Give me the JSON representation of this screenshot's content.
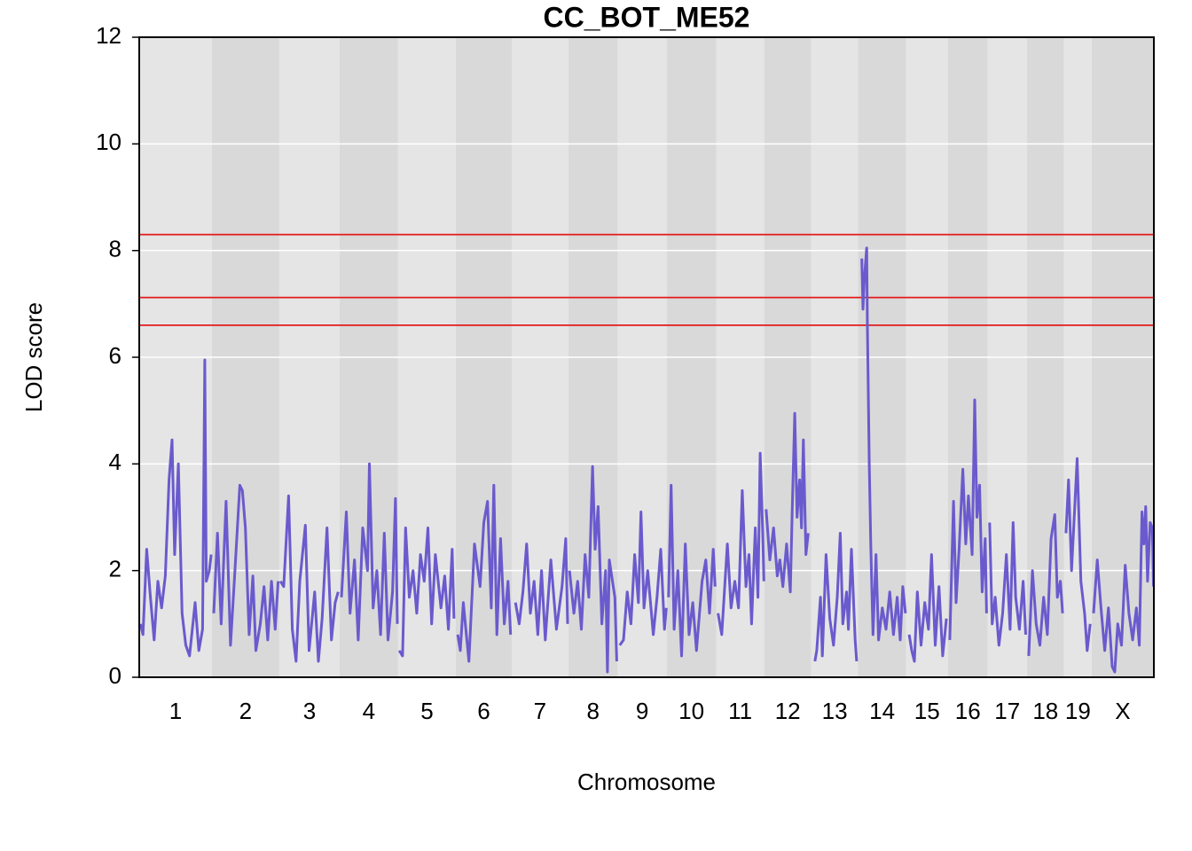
{
  "chart_data": {
    "type": "line",
    "title": "CC_BOT_ME52",
    "xlabel": "Chromosome",
    "ylabel": "LOD score",
    "ylim": [
      0,
      12
    ],
    "yticks": [
      0,
      2,
      4,
      6,
      8,
      10,
      12
    ],
    "grid": true,
    "color": "#6a5acd",
    "thresholds": [
      8.3,
      7.12,
      6.6
    ],
    "threshold_color": "#e31a1c",
    "band_colors": [
      "#e5e5e5",
      "#d9d9d9"
    ],
    "chromosomes": [
      {
        "name": "1",
        "length": 195,
        "x": [
          3,
          10,
          20,
          30,
          40,
          50,
          60,
          70,
          80,
          88,
          95,
          105,
          115,
          125,
          135,
          150,
          160,
          170,
          176,
          180,
          188,
          193
        ],
        "values": [
          1.0,
          0.8,
          2.4,
          1.5,
          0.7,
          1.8,
          1.3,
          1.9,
          3.7,
          4.45,
          2.3,
          4.0,
          1.2,
          0.6,
          0.4,
          1.4,
          0.5,
          0.9,
          5.95,
          1.8,
          2.0,
          2.3
        ]
      },
      {
        "name": "2",
        "length": 181,
        "x": [
          5,
          15,
          25,
          38,
          50,
          62,
          75,
          82,
          90,
          100,
          110,
          118,
          130,
          140,
          150,
          160,
          170,
          178
        ],
        "values": [
          1.2,
          2.7,
          1.0,
          3.3,
          0.6,
          2.0,
          3.6,
          3.5,
          2.8,
          0.8,
          1.9,
          0.5,
          1.0,
          1.7,
          0.7,
          1.8,
          0.9,
          1.8
        ]
      },
      {
        "name": "3",
        "length": 162,
        "x": [
          3,
          12,
          25,
          35,
          45,
          55,
          70,
          80,
          95,
          105,
          115,
          128,
          140,
          150,
          158
        ],
        "values": [
          1.8,
          1.7,
          3.4,
          0.9,
          0.3,
          1.8,
          2.85,
          0.5,
          1.6,
          0.3,
          1.1,
          2.8,
          0.7,
          1.4,
          1.6
        ]
      },
      {
        "name": "4",
        "length": 157,
        "x": [
          5,
          18,
          28,
          40,
          50,
          62,
          75,
          80,
          90,
          100,
          110,
          120,
          130,
          142,
          150,
          155
        ],
        "values": [
          1.5,
          3.1,
          1.2,
          2.2,
          0.7,
          2.8,
          2.0,
          4.0,
          1.3,
          2.0,
          0.8,
          2.7,
          0.7,
          1.6,
          3.35,
          1.0
        ]
      },
      {
        "name": "5",
        "length": 155,
        "x": [
          3,
          12,
          20,
          30,
          40,
          50,
          60,
          70,
          80,
          90,
          100,
          115,
          125,
          135,
          145,
          150
        ],
        "values": [
          0.5,
          0.4,
          2.8,
          1.5,
          2.0,
          1.2,
          2.3,
          1.8,
          2.8,
          1.0,
          2.3,
          1.3,
          1.9,
          0.9,
          2.4,
          1.1
        ]
      },
      {
        "name": "6",
        "length": 150,
        "x": [
          5,
          12,
          20,
          35,
          50,
          65,
          75,
          85,
          95,
          102,
          110,
          120,
          130,
          140,
          147
        ],
        "values": [
          0.8,
          0.5,
          1.4,
          0.3,
          2.5,
          1.7,
          2.9,
          3.3,
          1.3,
          3.6,
          0.8,
          2.6,
          1.0,
          1.8,
          0.8
        ]
      },
      {
        "name": "7",
        "length": 152,
        "x": [
          10,
          20,
          30,
          40,
          50,
          60,
          70,
          80,
          90,
          105,
          120,
          135,
          145,
          150
        ],
        "values": [
          1.4,
          1.0,
          1.6,
          2.5,
          1.2,
          1.8,
          0.8,
          2.0,
          0.7,
          2.2,
          0.9,
          1.7,
          2.6,
          1.0
        ]
      },
      {
        "name": "8",
        "length": 133,
        "x": [
          3,
          15,
          25,
          35,
          45,
          55,
          65,
          72,
          80,
          90,
          100,
          105,
          110,
          125,
          130
        ],
        "values": [
          2.0,
          1.2,
          1.8,
          0.9,
          2.3,
          1.5,
          3.95,
          2.4,
          3.2,
          1.0,
          2.0,
          0.1,
          2.2,
          1.5,
          0.3
        ]
      },
      {
        "name": "9",
        "length": 131,
        "x": [
          5,
          15,
          25,
          35,
          45,
          55,
          62,
          70,
          80,
          95,
          105,
          115,
          125,
          130
        ],
        "values": [
          0.6,
          0.7,
          1.6,
          1.0,
          2.3,
          1.4,
          3.1,
          1.3,
          2.0,
          0.8,
          1.5,
          2.4,
          0.9,
          1.3
        ]
      },
      {
        "name": "10",
        "length": 133,
        "x": [
          5,
          12,
          20,
          30,
          40,
          50,
          60,
          70,
          80,
          95,
          105,
          115,
          125,
          130
        ],
        "values": [
          1.5,
          3.6,
          0.9,
          2.0,
          0.4,
          2.5,
          0.8,
          1.4,
          0.5,
          1.8,
          2.2,
          1.2,
          2.4,
          1.7
        ]
      },
      {
        "name": "11",
        "length": 129,
        "x": [
          5,
          15,
          30,
          40,
          50,
          60,
          70,
          80,
          88,
          95,
          105,
          112,
          118,
          125,
          128
        ],
        "values": [
          1.2,
          0.8,
          2.5,
          1.3,
          1.8,
          1.3,
          3.5,
          1.7,
          2.3,
          1.0,
          2.8,
          1.5,
          4.2,
          2.7,
          1.8
        ]
      },
      {
        "name": "12",
        "length": 126,
        "x": [
          5,
          15,
          25,
          35,
          42,
          50,
          60,
          70,
          75,
          82,
          88,
          95,
          100,
          105,
          112,
          118
        ],
        "values": [
          3.15,
          2.2,
          2.8,
          1.9,
          2.2,
          1.7,
          2.5,
          1.6,
          3.1,
          4.95,
          3.0,
          3.7,
          2.8,
          4.45,
          2.3,
          2.7
        ]
      },
      {
        "name": "13",
        "length": 126,
        "x": [
          10,
          15,
          25,
          30,
          40,
          50,
          60,
          70,
          78,
          85,
          95,
          100,
          108,
          118,
          122
        ],
        "values": [
          0.3,
          0.5,
          1.5,
          0.4,
          2.3,
          1.1,
          0.6,
          1.5,
          2.7,
          1.0,
          1.6,
          0.9,
          2.4,
          0.7,
          0.3
        ]
      },
      {
        "name": "14",
        "length": 129,
        "x": [
          10,
          13,
          17,
          23,
          25,
          30,
          34,
          40,
          48,
          55,
          65,
          75,
          85,
          95,
          105,
          113,
          120,
          127
        ],
        "values": [
          7.85,
          6.9,
          7.5,
          8.05,
          6.6,
          4.0,
          2.5,
          0.8,
          2.3,
          0.7,
          1.3,
          0.9,
          1.6,
          0.8,
          1.5,
          0.7,
          1.7,
          1.2
        ]
      },
      {
        "name": "15",
        "length": 112,
        "x": [
          8,
          15,
          22,
          30,
          40,
          50,
          60,
          68,
          78,
          88,
          98,
          108
        ],
        "values": [
          0.8,
          0.5,
          0.3,
          1.6,
          0.6,
          1.4,
          0.9,
          2.3,
          0.6,
          1.7,
          0.4,
          1.1
        ]
      },
      {
        "name": "16",
        "length": 107,
        "x": [
          5,
          15,
          22,
          30,
          40,
          48,
          55,
          65,
          72,
          78,
          85,
          92,
          100,
          104
        ],
        "values": [
          0.7,
          3.3,
          1.4,
          2.4,
          3.9,
          2.5,
          3.4,
          2.3,
          5.2,
          3.0,
          3.6,
          1.6,
          2.6,
          1.2
        ]
      },
      {
        "name": "17",
        "length": 105,
        "x": [
          5,
          12,
          20,
          30,
          40,
          50,
          60,
          68,
          75,
          85,
          95,
          102
        ],
        "values": [
          2.9,
          1.0,
          1.5,
          0.6,
          1.2,
          2.3,
          0.9,
          2.9,
          1.5,
          0.9,
          1.8,
          0.8
        ]
      },
      {
        "name": "18",
        "length": 100,
        "x": [
          5,
          15,
          25,
          35,
          45,
          55,
          65,
          75,
          82,
          90,
          96
        ],
        "values": [
          0.4,
          2.0,
          1.0,
          0.6,
          1.5,
          0.8,
          2.6,
          3.05,
          1.5,
          1.8,
          1.2
        ]
      },
      {
        "name": "19",
        "length": 74,
        "x": [
          5,
          12,
          20,
          28,
          35,
          45,
          55,
          62,
          70
        ],
        "values": [
          2.7,
          3.7,
          2.0,
          3.1,
          4.1,
          1.8,
          1.2,
          0.5,
          1.0
        ]
      },
      {
        "name": "X",
        "length": 167,
        "x": [
          5,
          15,
          25,
          35,
          45,
          55,
          62,
          70,
          80,
          90,
          100,
          110,
          120,
          128,
          135,
          140,
          145,
          150,
          157,
          163,
          166
        ],
        "values": [
          1.2,
          2.2,
          1.3,
          0.5,
          1.3,
          0.2,
          0.1,
          1.0,
          0.6,
          2.1,
          1.2,
          0.7,
          1.3,
          0.6,
          3.1,
          2.5,
          3.2,
          1.8,
          2.9,
          2.8,
          1.7
        ]
      }
    ]
  }
}
